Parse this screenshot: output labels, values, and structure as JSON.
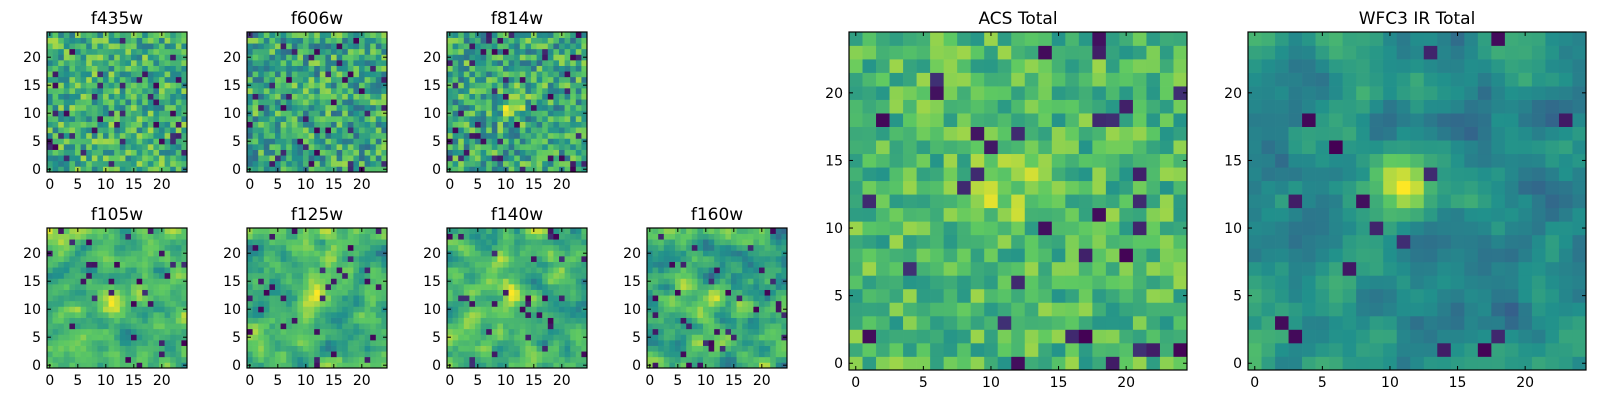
{
  "figure": {
    "background": "#ffffff",
    "colormap": "viridis",
    "colormap_stops": [
      "#440154",
      "#3b528b",
      "#21918c",
      "#5ec962",
      "#fde725"
    ]
  },
  "chart_data": [
    {
      "type": "heatmap",
      "title": "f435w",
      "grid_size": [
        25,
        25
      ],
      "xlim": [
        -0.5,
        24.5
      ],
      "ylim": [
        -0.5,
        24.5
      ],
      "xticks": [
        0,
        5,
        10,
        15,
        20
      ],
      "yticks": [
        0,
        5,
        10,
        15,
        20
      ],
      "texture": "fine",
      "mean_level": 0.64,
      "noise": 0.23,
      "dark_fraction": 0.07,
      "peak": null
    },
    {
      "type": "heatmap",
      "title": "f606w",
      "grid_size": [
        25,
        25
      ],
      "xlim": [
        -0.5,
        24.5
      ],
      "ylim": [
        -0.5,
        24.5
      ],
      "xticks": [
        0,
        5,
        10,
        15,
        20
      ],
      "yticks": [
        0,
        5,
        10,
        15,
        20
      ],
      "texture": "fine",
      "mean_level": 0.6,
      "noise": 0.25,
      "dark_fraction": 0.07,
      "peak": null
    },
    {
      "type": "heatmap",
      "title": "f814w",
      "grid_size": [
        25,
        25
      ],
      "xlim": [
        -0.5,
        24.5
      ],
      "ylim": [
        -0.5,
        24.5
      ],
      "xticks": [
        0,
        5,
        10,
        15,
        20
      ],
      "yticks": [
        0,
        5,
        10,
        15,
        20
      ],
      "texture": "fine",
      "mean_level": 0.6,
      "noise": 0.25,
      "dark_fraction": 0.08,
      "peak": {
        "x": 11,
        "y": 12,
        "strength": 0.25
      }
    },
    {
      "type": "heatmap",
      "title": "f105w",
      "grid_size": [
        25,
        25
      ],
      "xlim": [
        -0.5,
        24.5
      ],
      "ylim": [
        -0.5,
        24.5
      ],
      "xticks": [
        0,
        5,
        10,
        15,
        20
      ],
      "yticks": [
        0,
        5,
        10,
        15,
        20
      ],
      "texture": "smooth",
      "mean_level": 0.66,
      "noise": 0.18,
      "dark_fraction": 0.04,
      "peak": {
        "x": 11,
        "y": 12,
        "strength": 0.3
      }
    },
    {
      "type": "heatmap",
      "title": "f125w",
      "grid_size": [
        25,
        25
      ],
      "xlim": [
        -0.5,
        24.5
      ],
      "ylim": [
        -0.5,
        24.5
      ],
      "xticks": [
        0,
        5,
        10,
        15,
        20
      ],
      "yticks": [
        0,
        5,
        10,
        15,
        20
      ],
      "texture": "smooth",
      "mean_level": 0.64,
      "noise": 0.2,
      "dark_fraction": 0.05,
      "peak": {
        "x": 12,
        "y": 12,
        "strength": 0.3
      }
    },
    {
      "type": "heatmap",
      "title": "f140w",
      "grid_size": [
        25,
        25
      ],
      "xlim": [
        -0.5,
        24.5
      ],
      "ylim": [
        -0.5,
        24.5
      ],
      "xticks": [
        0,
        5,
        10,
        15,
        20
      ],
      "yticks": [
        0,
        5,
        10,
        15,
        20
      ],
      "texture": "smooth",
      "mean_level": 0.64,
      "noise": 0.2,
      "dark_fraction": 0.04,
      "peak": {
        "x": 11,
        "y": 13,
        "strength": 0.3
      }
    },
    {
      "type": "heatmap",
      "title": "f160w",
      "grid_size": [
        25,
        25
      ],
      "xlim": [
        -0.5,
        24.5
      ],
      "ylim": [
        -0.5,
        24.5
      ],
      "xticks": [
        0,
        5,
        10,
        15,
        20
      ],
      "yticks": [
        0,
        5,
        10,
        15,
        20
      ],
      "texture": "smooth",
      "mean_level": 0.58,
      "noise": 0.22,
      "dark_fraction": 0.06,
      "peak": {
        "x": 11,
        "y": 12,
        "strength": 0.3
      }
    },
    {
      "type": "heatmap",
      "title": "ACS Total",
      "grid_size": [
        25,
        25
      ],
      "xlim": [
        -0.5,
        24.5
      ],
      "ylim": [
        -0.5,
        24.5
      ],
      "xticks": [
        0,
        5,
        10,
        15,
        20
      ],
      "yticks": [
        0,
        5,
        10,
        15,
        20
      ],
      "texture": "fine",
      "mean_level": 0.68,
      "noise": 0.17,
      "dark_fraction": 0.04,
      "peak": {
        "x": 11,
        "y": 13,
        "strength": 0.2
      }
    },
    {
      "type": "heatmap",
      "title": "WFC3 IR Total",
      "grid_size": [
        25,
        25
      ],
      "xlim": [
        -0.5,
        24.5
      ],
      "ylim": [
        -0.5,
        24.5
      ],
      "xticks": [
        0,
        5,
        10,
        15,
        20
      ],
      "yticks": [
        0,
        5,
        10,
        15,
        20
      ],
      "texture": "smooth",
      "mean_level": 0.48,
      "noise": 0.14,
      "dark_fraction": 0.03,
      "peak": {
        "x": 11,
        "y": 13,
        "strength": 0.45
      }
    }
  ]
}
